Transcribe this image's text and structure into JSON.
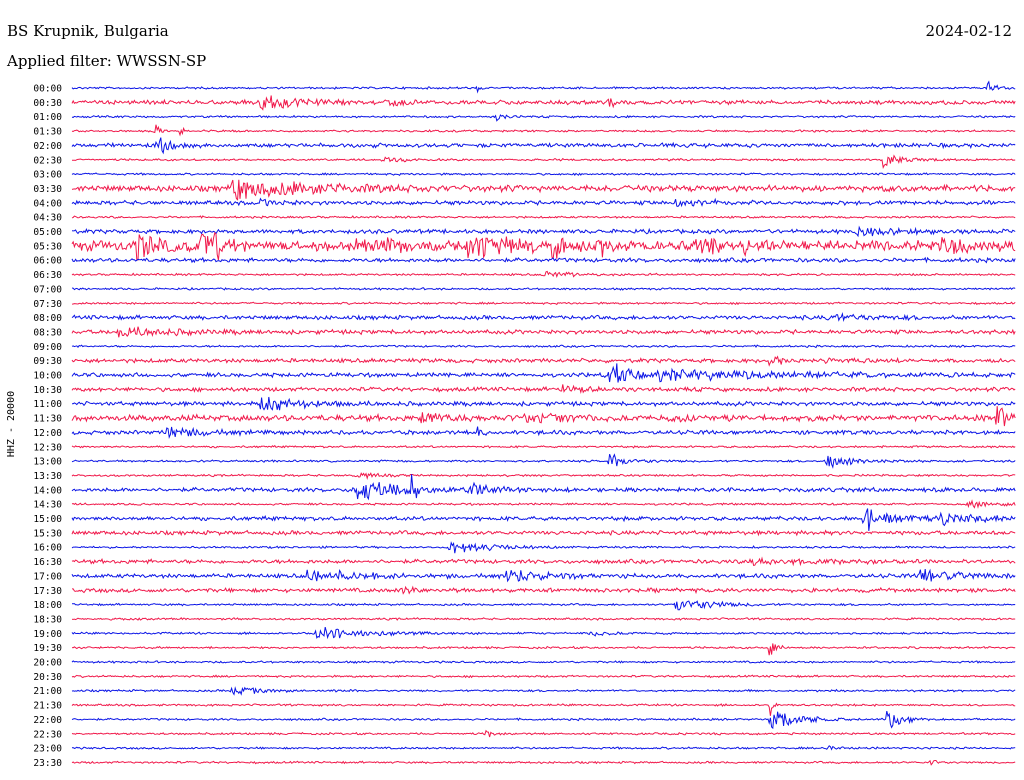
{
  "header": {
    "station": "BS Krupnik, Bulgaria",
    "date": "2024-02-12",
    "filter": "Applied filter: WWSSN-SP"
  },
  "colors": {
    "blue": "#0a14e6",
    "red": "#f0184a"
  },
  "chart_data": {
    "type": "line",
    "title": "BS Krupnik, Bulgaria",
    "ylabel": "HHZ - 20000",
    "rows": [
      "00:00",
      "00:30",
      "01:00",
      "01:30",
      "02:00",
      "02:30",
      "03:00",
      "03:30",
      "04:00",
      "04:30",
      "05:00",
      "05:30",
      "06:00",
      "06:30",
      "07:00",
      "07:30",
      "08:00",
      "08:30",
      "09:00",
      "09:30",
      "10:00",
      "10:30",
      "11:00",
      "11:30",
      "12:00",
      "12:30",
      "13:00",
      "13:30",
      "14:00",
      "14:30",
      "15:00",
      "15:30",
      "16:00",
      "16:30",
      "17:00",
      "17:30",
      "18:00",
      "18:30",
      "19:00",
      "19:30",
      "20:00",
      "20:30",
      "21:00",
      "21:30",
      "22:00",
      "22:30",
      "23:00",
      "23:30"
    ],
    "row_colors": [
      "blue",
      "red"
    ],
    "row_minutes": 30,
    "noise": [
      1,
      2,
      1,
      1,
      2,
      1,
      1,
      3,
      2,
      1,
      2,
      5,
      2,
      1,
      1,
      1,
      2,
      2,
      1,
      2,
      2,
      2,
      2,
      3,
      2,
      1,
      1,
      1,
      2,
      1,
      2,
      2,
      1,
      2,
      2,
      2,
      1,
      1,
      1,
      1,
      1,
      1,
      1,
      1,
      1,
      1,
      1,
      1
    ],
    "events": [
      {
        "row": 0,
        "t": 0.43,
        "amp": 4,
        "dur": 0.002
      },
      {
        "row": 0,
        "t": 0.97,
        "amp": 5,
        "dur": 0.01
      },
      {
        "row": 1,
        "t": 0.2,
        "amp": 9,
        "dur": 0.03
      },
      {
        "row": 1,
        "t": 0.57,
        "amp": 14,
        "dur": 0.002
      },
      {
        "row": 1,
        "t": 0.33,
        "amp": 3,
        "dur": 0.02
      },
      {
        "row": 2,
        "t": 0.45,
        "amp": 3,
        "dur": 0.01
      },
      {
        "row": 3,
        "t": 0.09,
        "amp": 10,
        "dur": 0.003
      },
      {
        "row": 3,
        "t": 0.116,
        "amp": 7,
        "dur": 0.003
      },
      {
        "row": 4,
        "t": 0.09,
        "amp": 12,
        "dur": 0.01
      },
      {
        "row": 5,
        "t": 0.86,
        "amp": 10,
        "dur": 0.015
      },
      {
        "row": 5,
        "t": 0.33,
        "amp": 3,
        "dur": 0.02
      },
      {
        "row": 7,
        "t": 0.17,
        "amp": 10,
        "dur": 0.08
      },
      {
        "row": 8,
        "t": 0.64,
        "amp": 4,
        "dur": 0.03
      },
      {
        "row": 8,
        "t": 0.2,
        "amp": 3,
        "dur": 0.02
      },
      {
        "row": 10,
        "t": 0.83,
        "amp": 4,
        "dur": 0.04
      },
      {
        "row": 11,
        "t": 0.07,
        "amp": 16,
        "dur": 0.015
      },
      {
        "row": 11,
        "t": 0.135,
        "amp": 11,
        "dur": 0.015
      },
      {
        "row": 11,
        "t": 0.15,
        "amp": 12,
        "dur": 0.01
      },
      {
        "row": 11,
        "t": 0.3,
        "amp": 6,
        "dur": 0.05
      },
      {
        "row": 11,
        "t": 0.42,
        "amp": 9,
        "dur": 0.05
      },
      {
        "row": 11,
        "t": 0.51,
        "amp": 12,
        "dur": 0.01
      },
      {
        "row": 11,
        "t": 0.56,
        "amp": 13,
        "dur": 0.005
      },
      {
        "row": 11,
        "t": 0.66,
        "amp": 8,
        "dur": 0.02
      },
      {
        "row": 11,
        "t": 0.71,
        "amp": 10,
        "dur": 0.015
      },
      {
        "row": 11,
        "t": 0.92,
        "amp": 6,
        "dur": 0.03
      },
      {
        "row": 13,
        "t": 0.5,
        "amp": 3,
        "dur": 0.03
      },
      {
        "row": 16,
        "t": 0.8,
        "amp": 3,
        "dur": 0.04
      },
      {
        "row": 17,
        "t": 0.05,
        "amp": 5,
        "dur": 0.05
      },
      {
        "row": 19,
        "t": 0.74,
        "amp": 5,
        "dur": 0.01
      },
      {
        "row": 19,
        "t": 0.8,
        "amp": 3,
        "dur": 0.01
      },
      {
        "row": 20,
        "t": 0.57,
        "amp": 12,
        "dur": 0.02
      },
      {
        "row": 20,
        "t": 0.62,
        "amp": 6,
        "dur": 0.12
      },
      {
        "row": 21,
        "t": 0.52,
        "amp": 4,
        "dur": 0.02
      },
      {
        "row": 22,
        "t": 0.2,
        "amp": 8,
        "dur": 0.04
      },
      {
        "row": 23,
        "t": 0.37,
        "amp": 4,
        "dur": 0.03
      },
      {
        "row": 23,
        "t": 0.48,
        "amp": 5,
        "dur": 0.04
      },
      {
        "row": 23,
        "t": 0.64,
        "amp": 4,
        "dur": 0.01
      },
      {
        "row": 23,
        "t": 0.98,
        "amp": 12,
        "dur": 0.01
      },
      {
        "row": 24,
        "t": 0.1,
        "amp": 6,
        "dur": 0.03
      },
      {
        "row": 24,
        "t": 0.43,
        "amp": 6,
        "dur": 0.005
      },
      {
        "row": 26,
        "t": 0.57,
        "amp": 8,
        "dur": 0.02
      },
      {
        "row": 26,
        "t": 0.8,
        "amp": 6,
        "dur": 0.03
      },
      {
        "row": 27,
        "t": 0.3,
        "amp": 3,
        "dur": 0.02
      },
      {
        "row": 28,
        "t": 0.3,
        "amp": 11,
        "dur": 0.04
      },
      {
        "row": 28,
        "t": 0.36,
        "amp": 14,
        "dur": 0.005
      },
      {
        "row": 28,
        "t": 0.42,
        "amp": 7,
        "dur": 0.02
      },
      {
        "row": 29,
        "t": 0.95,
        "amp": 3,
        "dur": 0.04
      },
      {
        "row": 30,
        "t": 0.84,
        "amp": 14,
        "dur": 0.02
      },
      {
        "row": 30,
        "t": 0.92,
        "amp": 6,
        "dur": 0.04
      },
      {
        "row": 32,
        "t": 0.4,
        "amp": 7,
        "dur": 0.04
      },
      {
        "row": 33,
        "t": 0.72,
        "amp": 3,
        "dur": 0.05
      },
      {
        "row": 34,
        "t": 0.25,
        "amp": 6,
        "dur": 0.05
      },
      {
        "row": 34,
        "t": 0.46,
        "amp": 5,
        "dur": 0.04
      },
      {
        "row": 34,
        "t": 0.9,
        "amp": 7,
        "dur": 0.03
      },
      {
        "row": 35,
        "t": 0.35,
        "amp": 3,
        "dur": 0.02
      },
      {
        "row": 36,
        "t": 0.64,
        "amp": 10,
        "dur": 0.03
      },
      {
        "row": 38,
        "t": 0.26,
        "amp": 7,
        "dur": 0.05
      },
      {
        "row": 38,
        "t": 0.55,
        "amp": 3,
        "dur": 0.02
      },
      {
        "row": 39,
        "t": 0.74,
        "amp": 20,
        "dur": 0.004
      },
      {
        "row": 42,
        "t": 0.17,
        "amp": 4,
        "dur": 0.03
      },
      {
        "row": 43,
        "t": 0.74,
        "amp": 12,
        "dur": 0.003
      },
      {
        "row": 44,
        "t": 0.74,
        "amp": 22,
        "dur": 0.02
      },
      {
        "row": 44,
        "t": 0.865,
        "amp": 18,
        "dur": 0.01
      },
      {
        "row": 45,
        "t": 0.44,
        "amp": 4,
        "dur": 0.005
      },
      {
        "row": 46,
        "t": 0.8,
        "amp": 3,
        "dur": 0.01
      },
      {
        "row": 47,
        "t": 0.91,
        "amp": 8,
        "dur": 0.005
      }
    ]
  }
}
